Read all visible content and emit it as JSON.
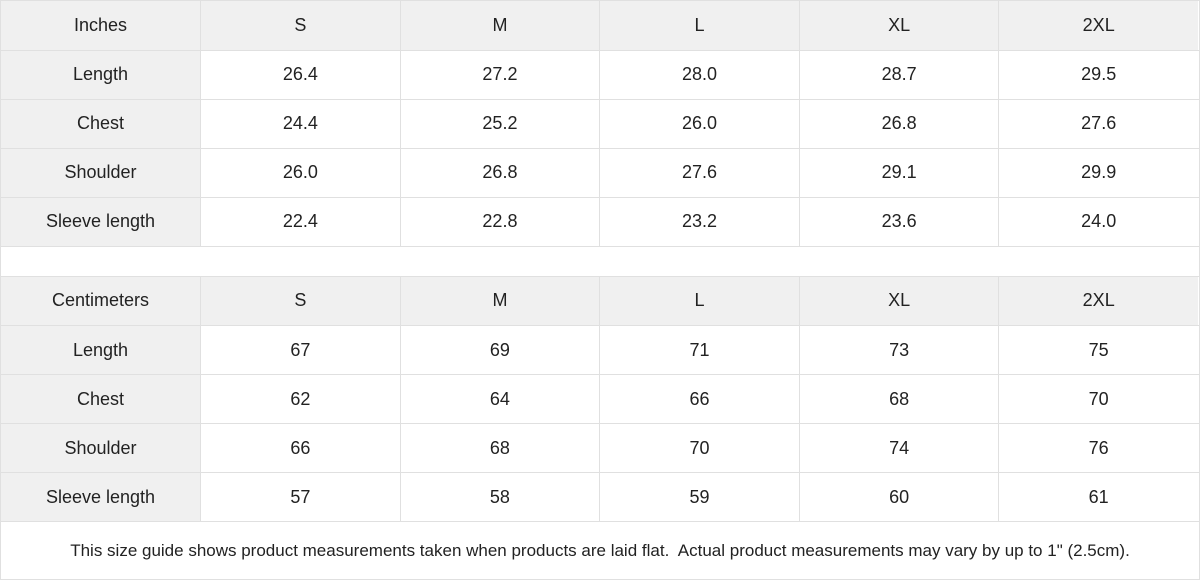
{
  "colors": {
    "header_bg": "#f0f0f0",
    "row_label_bg": "#f0f0f0",
    "cell_bg": "#ffffff",
    "border": "#e0e0e0",
    "text": "#222222"
  },
  "tables": [
    {
      "name": "inches",
      "columns": [
        "Inches",
        "S",
        "M",
        "L",
        "XL",
        "2XL"
      ],
      "rows": [
        [
          "Length",
          "26.4",
          "27.2",
          "28.0",
          "28.7",
          "29.5"
        ],
        [
          "Chest",
          "24.4",
          "25.2",
          "26.0",
          "26.8",
          "27.6"
        ],
        [
          "Shoulder",
          "26.0",
          "26.8",
          "27.6",
          "29.1",
          "29.9"
        ],
        [
          "Sleeve length",
          "22.4",
          "22.8",
          "23.2",
          "23.6",
          "24.0"
        ]
      ]
    },
    {
      "name": "centimeters",
      "columns": [
        "Centimeters",
        "S",
        "M",
        "L",
        "XL",
        "2XL"
      ],
      "rows": [
        [
          "Length",
          "67",
          "69",
          "71",
          "73",
          "75"
        ],
        [
          "Chest",
          "62",
          "64",
          "66",
          "68",
          "70"
        ],
        [
          "Shoulder",
          "66",
          "68",
          "70",
          "74",
          "76"
        ],
        [
          "Sleeve length",
          "57",
          "58",
          "59",
          "60",
          "61"
        ]
      ]
    }
  ],
  "footer": {
    "note": "This size guide shows product measurements taken when products are laid flat.  Actual product measurements may vary by up to 1\" (2.5cm)."
  }
}
